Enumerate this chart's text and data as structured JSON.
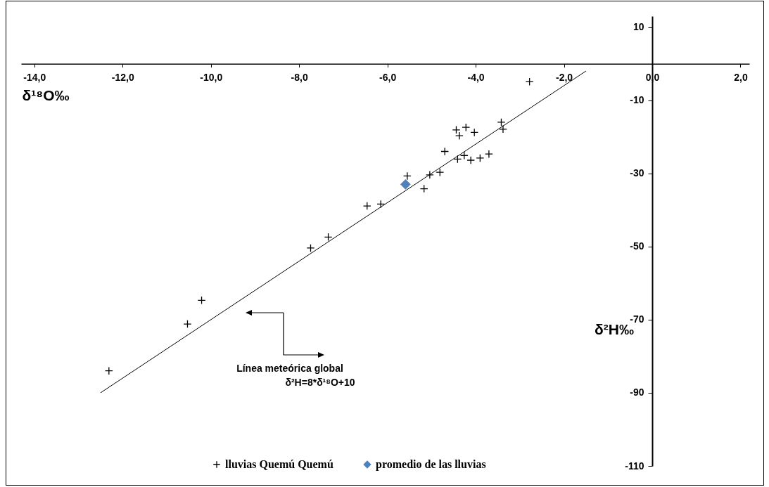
{
  "chart_data": {
    "type": "scatter",
    "xlabel": "δ¹⁸O‰",
    "ylabel": "δ²H‰",
    "xlim": [
      -14.3,
      2.2
    ],
    "ylim": [
      -110,
      13
    ],
    "xticks": [
      {
        "value": -14,
        "label": "-14,0"
      },
      {
        "value": -12,
        "label": "-12,0"
      },
      {
        "value": -10,
        "label": "-10,0"
      },
      {
        "value": -8,
        "label": "-8,0"
      },
      {
        "value": -6,
        "label": "-6,0"
      },
      {
        "value": -4,
        "label": "-4,0"
      },
      {
        "value": -2,
        "label": "-2,0"
      },
      {
        "value": 0,
        "label": "0,0"
      },
      {
        "value": 2,
        "label": "2,0"
      }
    ],
    "yticks": [
      -110,
      -90,
      -70,
      -50,
      -30,
      -10,
      10
    ],
    "grid": false,
    "legend": "bottom",
    "annotations": [
      "Línea meteórica global",
      "δ²H=8*δ¹⁸O+10"
    ],
    "series": [
      {
        "name": "lluvias Quemú Quemú",
        "marker": "cross",
        "color": "#000000",
        "x": [
          -12.31,
          -10.53,
          -10.21,
          -7.74,
          -7.34,
          -6.46,
          -6.15,
          -5.55,
          -5.17,
          -5.04,
          -4.81,
          -4.7,
          -4.44,
          -4.37,
          -4.41,
          -4.22,
          -4.26,
          -4.11,
          -4.03,
          -3.9,
          -3.7,
          -3.42,
          -3.38,
          -2.78
        ],
        "values": [
          -84,
          -71.2,
          -64.7,
          -50.4,
          -47.4,
          -38.9,
          -38.4,
          -30.7,
          -34.2,
          -30.4,
          -29.7,
          -24,
          -18.1,
          -19.7,
          -26.1,
          -17.4,
          -25.1,
          -26.4,
          -18.8,
          -25.8,
          -24.7,
          -16,
          -17.9,
          -4.9
        ]
      },
      {
        "name": "promedio de las lluvias",
        "marker": "diamond",
        "color": "#4f81bd",
        "x": [
          -5.59
        ],
        "values": [
          -33
        ]
      },
      {
        "type": "line",
        "color": "#000000",
        "x": [
          -12.5,
          -1.5
        ],
        "values": [
          -90,
          -2
        ]
      }
    ]
  }
}
